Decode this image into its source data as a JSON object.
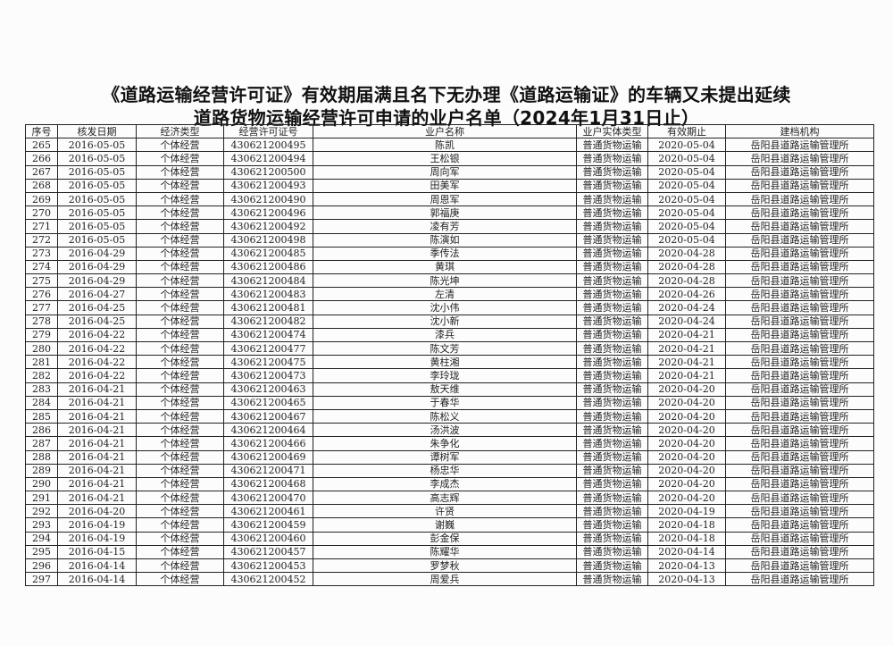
{
  "title_line1": "《道路运输经营许可证》有效期届满且名下无办理《道路运输证》的车辆又未提出延续",
  "title_line2": "道路货物运输经营许可申请的业户名单（2024年1月31日止）",
  "columns": [
    "序号",
    "核发日期",
    "经济类型",
    "经营许可证号",
    "业户名称",
    "业户实体类型",
    "有效期止",
    "建档机构"
  ],
  "rows": [
    [
      "265",
      "2016-05-05",
      "个体经营",
      "430621200495",
      "陈凯",
      "普通货物运输",
      "2020-05-04",
      "岳阳县道路运输管理所"
    ],
    [
      "266",
      "2016-05-05",
      "个体经营",
      "430621200494",
      "王松银",
      "普通货物运输",
      "2020-05-04",
      "岳阳县道路运输管理所"
    ],
    [
      "267",
      "2016-05-05",
      "个体经营",
      "430621200500",
      "周向军",
      "普通货物运输",
      "2020-05-04",
      "岳阳县道路运输管理所"
    ],
    [
      "268",
      "2016-05-05",
      "个体经营",
      "430621200493",
      "田美军",
      "普通货物运输",
      "2020-05-04",
      "岳阳县道路运输管理所"
    ],
    [
      "269",
      "2016-05-05",
      "个体经营",
      "430621200490",
      "周恩军",
      "普通货物运输",
      "2020-05-04",
      "岳阳县道路运输管理所"
    ],
    [
      "270",
      "2016-05-05",
      "个体经营",
      "430621200496",
      "郭福庚",
      "普通货物运输",
      "2020-05-04",
      "岳阳县道路运输管理所"
    ],
    [
      "271",
      "2016-05-05",
      "个体经营",
      "430621200492",
      "凌有芳",
      "普通货物运输",
      "2020-05-04",
      "岳阳县道路运输管理所"
    ],
    [
      "272",
      "2016-05-05",
      "个体经营",
      "430621200498",
      "陈演如",
      "普通货物运输",
      "2020-05-04",
      "岳阳县道路运输管理所"
    ],
    [
      "273",
      "2016-04-29",
      "个体经营",
      "430621200485",
      "季传法",
      "普通货物运输",
      "2020-04-28",
      "岳阳县道路运输管理所"
    ],
    [
      "274",
      "2016-04-29",
      "个体经营",
      "430621200486",
      "黄琪",
      "普通货物运输",
      "2020-04-28",
      "岳阳县道路运输管理所"
    ],
    [
      "275",
      "2016-04-29",
      "个体经营",
      "430621200484",
      "陈光坤",
      "普通货物运输",
      "2020-04-28",
      "岳阳县道路运输管理所"
    ],
    [
      "276",
      "2016-04-27",
      "个体经营",
      "430621200483",
      "左清",
      "普通货物运输",
      "2020-04-26",
      "岳阳县道路运输管理所"
    ],
    [
      "277",
      "2016-04-25",
      "个体经营",
      "430621200481",
      "沈小伟",
      "普通货物运输",
      "2020-04-24",
      "岳阳县道路运输管理所"
    ],
    [
      "278",
      "2016-04-25",
      "个体经营",
      "430621200482",
      "沈小新",
      "普通货物运输",
      "2020-04-24",
      "岳阳县道路运输管理所"
    ],
    [
      "279",
      "2016-04-22",
      "个体经营",
      "430621200474",
      "漆兵",
      "普通货物运输",
      "2020-04-21",
      "岳阳县道路运输管理所"
    ],
    [
      "280",
      "2016-04-22",
      "个体经营",
      "430621200477",
      "陈文芳",
      "普通货物运输",
      "2020-04-21",
      "岳阳县道路运输管理所"
    ],
    [
      "281",
      "2016-04-22",
      "个体经营",
      "430621200475",
      "黄柱湘",
      "普通货物运输",
      "2020-04-21",
      "岳阳县道路运输管理所"
    ],
    [
      "282",
      "2016-04-22",
      "个体经营",
      "430621200473",
      "李玲珑",
      "普通货物运输",
      "2020-04-21",
      "岳阳县道路运输管理所"
    ],
    [
      "283",
      "2016-04-21",
      "个体经营",
      "430621200463",
      "敖天维",
      "普通货物运输",
      "2020-04-20",
      "岳阳县道路运输管理所"
    ],
    [
      "284",
      "2016-04-21",
      "个体经营",
      "430621200465",
      "于春华",
      "普通货物运输",
      "2020-04-20",
      "岳阳县道路运输管理所"
    ],
    [
      "285",
      "2016-04-21",
      "个体经营",
      "430621200467",
      "陈松义",
      "普通货物运输",
      "2020-04-20",
      "岳阳县道路运输管理所"
    ],
    [
      "286",
      "2016-04-21",
      "个体经营",
      "430621200464",
      "汤洪波",
      "普通货物运输",
      "2020-04-20",
      "岳阳县道路运输管理所"
    ],
    [
      "287",
      "2016-04-21",
      "个体经营",
      "430621200466",
      "朱争化",
      "普通货物运输",
      "2020-04-20",
      "岳阳县道路运输管理所"
    ],
    [
      "288",
      "2016-04-21",
      "个体经营",
      "430621200469",
      "谭树军",
      "普通货物运输",
      "2020-04-20",
      "岳阳县道路运输管理所"
    ],
    [
      "289",
      "2016-04-21",
      "个体经营",
      "430621200471",
      "杨忠华",
      "普通货物运输",
      "2020-04-20",
      "岳阳县道路运输管理所"
    ],
    [
      "290",
      "2016-04-21",
      "个体经营",
      "430621200468",
      "李成杰",
      "普通货物运输",
      "2020-04-20",
      "岳阳县道路运输管理所"
    ],
    [
      "291",
      "2016-04-21",
      "个体经营",
      "430621200470",
      "高志辉",
      "普通货物运输",
      "2020-04-20",
      "岳阳县道路运输管理所"
    ],
    [
      "292",
      "2016-04-20",
      "个体经营",
      "430621200461",
      "许贤",
      "普通货物运输",
      "2020-04-19",
      "岳阳县道路运输管理所"
    ],
    [
      "293",
      "2016-04-19",
      "个体经营",
      "430621200459",
      "谢巍",
      "普通货物运输",
      "2020-04-18",
      "岳阳县道路运输管理所"
    ],
    [
      "294",
      "2016-04-19",
      "个体经营",
      "430621200460",
      "彭金保",
      "普通货物运输",
      "2020-04-18",
      "岳阳县道路运输管理所"
    ],
    [
      "295",
      "2016-04-15",
      "个体经营",
      "430621200457",
      "陈耀华",
      "普通货物运输",
      "2020-04-14",
      "岳阳县道路运输管理所"
    ],
    [
      "296",
      "2016-04-14",
      "个体经营",
      "430621200453",
      "罗梦秋",
      "普通货物运输",
      "2020-04-13",
      "岳阳县道路运输管理所"
    ],
    [
      "297",
      "2016-04-14",
      "个体经营",
      "430621200452",
      "周爱兵",
      "普通货物运输",
      "2020-04-13",
      "岳阳县道路运输管理所"
    ]
  ]
}
